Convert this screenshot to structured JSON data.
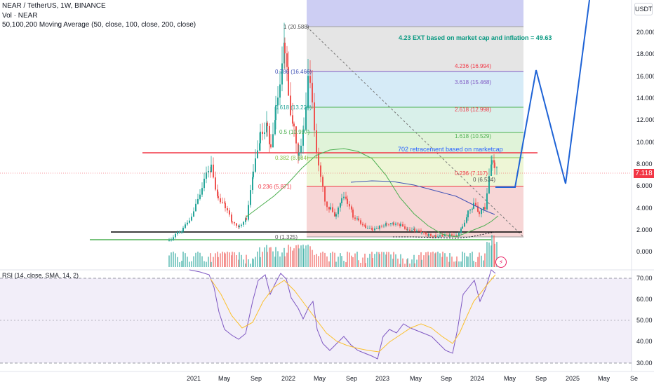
{
  "header": {
    "symbol_line": "NEAR / TetherUS, 1W, BINANCE",
    "volume_line": "Vol · NEAR",
    "ma_line": "50,100,200 Moving Average (50, close, 100, close, 200, close)",
    "currency": "USDT",
    "current_price": "7.118"
  },
  "price_axis": {
    "ticks": [
      "20.000",
      "18.000",
      "16.000",
      "14.000",
      "12.000",
      "10.000",
      "8.000",
      "6.000",
      "4.000",
      "2.000",
      "0.000"
    ]
  },
  "rsi_panel": {
    "label": "RSI (14, close, SMA, 14, 2)",
    "ticks": [
      "70.00",
      "60.00",
      "50.00",
      "40.00",
      "30.00"
    ]
  },
  "time_axis": {
    "labels": [
      "2021",
      "May",
      "Sep",
      "2022",
      "May",
      "Sep",
      "2023",
      "May",
      "Sep",
      "2024",
      "May",
      "Sep",
      "2025",
      "May",
      "Se"
    ]
  },
  "fib_retracement": {
    "levels": [
      {
        "label": "1 (20.588)",
        "value": 20.588
      },
      {
        "label": "0.786 (16.466)",
        "value": 16.466
      },
      {
        "label": "0.618 (13.229)",
        "value": 13.229
      },
      {
        "label": "0.5 (10.957)",
        "value": 10.957
      },
      {
        "label": "0.382 (8.684)",
        "value": 8.684
      },
      {
        "label": "0.236 (5.871)",
        "value": 5.871
      },
      {
        "label": "0 (1.325)",
        "value": 1.325
      }
    ]
  },
  "fib_extension": {
    "levels": [
      {
        "label": "4.236 (16.994)",
        "value": 16.994
      },
      {
        "label": "3.618 (15.468)",
        "value": 15.468
      },
      {
        "label": "2.618 (12.998)",
        "value": 12.998
      },
      {
        "label": "1.618 (10.529)",
        "value": 10.529
      },
      {
        "label": "0.236 (7.117)",
        "value": 7.117
      },
      {
        "label": "0 (6.534)",
        "value": 6.534
      }
    ]
  },
  "annotations": {
    "ext_note": "4.23 EXT based on market cap and inflation = 49.63",
    "retrace_note": "702 retracement based on marketcap"
  },
  "colors": {
    "up": "#26a69a",
    "down": "#ef5350",
    "ma50": "#4caf50",
    "ma100": "#3f51b5",
    "ma200": "#000000",
    "rsi": "#7e57c2",
    "rsi_ma": "#fbc02d",
    "projection": "#1e63d6",
    "red_line": "#f23645",
    "green_line": "#4caf50"
  }
}
